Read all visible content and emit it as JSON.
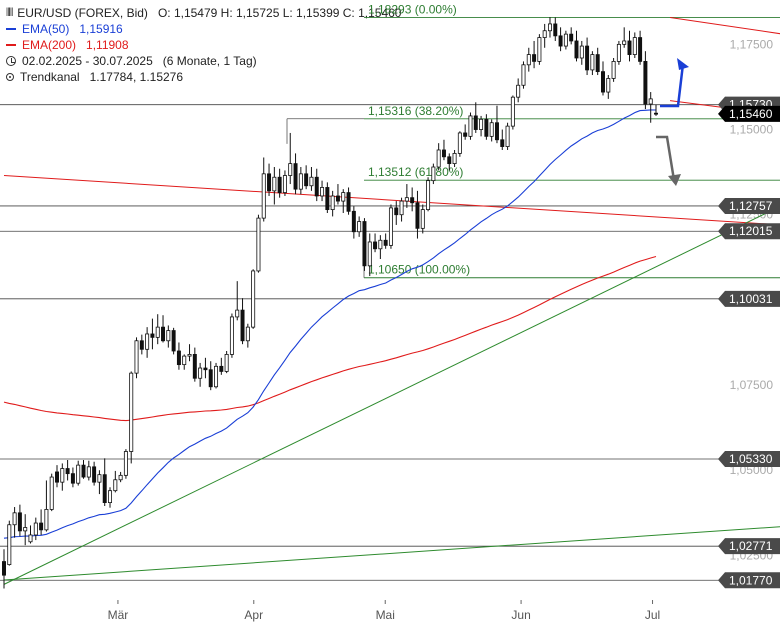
{
  "legend": {
    "instrument": "EUR/USD (FOREX, Bid)",
    "ohlc": "O: 1,15479  H: 1,15725  L: 1,15399  C: 1,15460",
    "ema50_label": "EMA(50)",
    "ema50_value": "1,15916",
    "ema200_label": "EMA(200)",
    "ema200_value": "1,11908",
    "period": "02.02.2025 - 30.07.2025",
    "period_detail": "(6 Monate, 1 Tag)",
    "channel_label": "Trendkanal",
    "channel_value": "1.17784, 1.15276"
  },
  "colors": {
    "up": "#ffffff",
    "down": "#111111",
    "ema50": "#1a3fd6",
    "ema200": "#e01b1b",
    "fib": "#2e7d32",
    "trend": "#2e8b2e",
    "channel": "#e01b1b",
    "label_bg": "#4a4a4a",
    "price_bg": "#000000",
    "arrow_up": "#1a3fd6",
    "arrow_down": "#666666"
  },
  "chart_data": {
    "type": "candlestick",
    "ylim": [
      1.0125,
      1.1845
    ],
    "x_ticks": [
      {
        "label": "Mär",
        "day": 26
      },
      {
        "label": "Apr",
        "day": 57
      },
      {
        "label": "Mai",
        "day": 87
      },
      {
        "label": "Jun",
        "day": 118
      },
      {
        "label": "Jul",
        "day": 148
      }
    ],
    "y_ticks": [
      "1,17500",
      "1,15000",
      "1,12500",
      "1,10000",
      "1,07500",
      "1,05000",
      "1,02500"
    ],
    "y_tick_values": [
      1.175,
      1.15,
      1.125,
      1.1,
      1.075,
      1.05,
      1.025
    ],
    "horizontal_levels": [
      {
        "value": 1.1573,
        "label": "1,15730"
      },
      {
        "value": 1.12757,
        "label": "1,12757"
      },
      {
        "value": 1.12015,
        "label": "1,12015"
      },
      {
        "value": 1.10031,
        "label": "1,10031"
      },
      {
        "value": 1.0533,
        "label": "1,05330"
      },
      {
        "value": 1.02771,
        "label": "1,02771"
      },
      {
        "value": 1.0177,
        "label": "1,01770"
      }
    ],
    "current_price": {
      "value": 1.1546,
      "label": "1,15460"
    },
    "fibonacci": [
      {
        "value": 1.1829,
        "label": "1,18293 (0.00%)"
      },
      {
        "value": 1.15316,
        "label": "1,15316 (38.20%)"
      },
      {
        "value": 1.13512,
        "label": "1,13512 (61.80%)"
      },
      {
        "value": 1.1065,
        "label": "1,10650 (100.00%)"
      }
    ],
    "trend_channel": {
      "upper_start": [
        152,
        1.1829
      ],
      "upper_end": [
        212,
        1.1715
      ],
      "lower_start": [
        152,
        1.1585
      ],
      "lower_end": [
        212,
        1.1485
      ]
    },
    "long_lines": [
      {
        "name": "red-resistance",
        "start": [
          0,
          1.1365
        ],
        "end": [
          212,
          1.1192
        ]
      },
      {
        "name": "green-support",
        "start": [
          0,
          1.0165
        ],
        "end": [
          212,
          1.1493
        ]
      },
      {
        "name": "green-lower",
        "start": [
          0,
          1.0178
        ],
        "end": [
          212,
          1.0365
        ]
      }
    ],
    "days_span": [
      0,
      212
    ],
    "ohlc": [
      [
        1.0232,
        1.0268,
        1.0153,
        1.0192
      ],
      [
        1.0223,
        1.0352,
        1.022,
        1.034
      ],
      [
        1.034,
        1.0392,
        1.0302,
        1.0375
      ],
      [
        1.0375,
        1.0399,
        1.0306,
        1.0322
      ],
      [
        1.0322,
        1.0371,
        1.028,
        1.0332
      ],
      [
        1.029,
        1.0338,
        1.0285,
        1.031
      ],
      [
        1.031,
        1.0361,
        1.0295,
        1.0345
      ],
      [
        1.0345,
        1.0385,
        1.031,
        1.0325
      ],
      [
        1.0325,
        1.047,
        1.032,
        1.0385
      ],
      [
        1.0385,
        1.049,
        1.038,
        1.048
      ],
      [
        1.0495,
        1.0515,
        1.045,
        1.0465
      ],
      [
        1.0465,
        1.052,
        1.044,
        1.0505
      ],
      [
        1.0505,
        1.053,
        1.047,
        1.049
      ],
      [
        1.049,
        1.0508,
        1.045,
        1.0462
      ],
      [
        1.0462,
        1.0528,
        1.0455,
        1.0515
      ],
      [
        1.0515,
        1.053,
        1.0475,
        1.048
      ],
      [
        1.048,
        1.0528,
        1.047,
        1.051
      ],
      [
        1.051,
        1.0525,
        1.0455,
        1.0465
      ],
      [
        1.0465,
        1.05,
        1.043,
        1.0487
      ],
      [
        1.0487,
        1.0535,
        1.0395,
        1.0405
      ],
      [
        1.0405,
        1.045,
        1.039,
        1.044
      ],
      [
        1.044,
        1.0498,
        1.0435,
        1.0472
      ],
      [
        1.0472,
        1.0495,
        1.0465,
        1.0485
      ],
      [
        1.0485,
        1.0562,
        1.0475,
        1.0555
      ],
      [
        1.0555,
        1.079,
        1.052,
        1.0785
      ],
      [
        1.0785,
        1.089,
        1.077,
        1.088
      ],
      [
        1.088,
        1.0898,
        1.084,
        1.0855
      ],
      [
        1.0855,
        1.092,
        1.083,
        1.09
      ],
      [
        1.09,
        1.0945,
        1.0855,
        1.089
      ],
      [
        1.089,
        1.0958,
        1.087,
        1.092
      ],
      [
        1.092,
        1.0955,
        1.0875,
        1.088
      ],
      [
        1.088,
        1.0925,
        1.086,
        1.091
      ],
      [
        1.091,
        1.0918,
        1.084,
        1.085
      ],
      [
        1.085,
        1.0875,
        1.0795,
        1.081
      ],
      [
        1.081,
        1.084,
        1.0795,
        1.0835
      ],
      [
        1.0835,
        1.087,
        1.082,
        1.084
      ],
      [
        1.084,
        1.086,
        1.076,
        1.077
      ],
      [
        1.077,
        1.0815,
        1.0745,
        1.08
      ],
      [
        1.08,
        1.083,
        1.077,
        1.0795
      ],
      [
        1.0795,
        1.082,
        1.0735,
        1.0745
      ],
      [
        1.0745,
        1.0815,
        1.074,
        1.0805
      ],
      [
        1.0805,
        1.083,
        1.078,
        1.079
      ],
      [
        1.079,
        1.085,
        1.0785,
        1.084
      ],
      [
        1.084,
        1.096,
        1.083,
        1.095
      ],
      [
        1.095,
        1.1055,
        1.094,
        1.097
      ],
      [
        1.097,
        1.1005,
        1.087,
        1.088
      ],
      [
        1.088,
        1.093,
        1.086,
        1.092
      ],
      [
        1.092,
        1.109,
        1.0915,
        1.1085
      ],
      [
        1.1085,
        1.125,
        1.108,
        1.124
      ],
      [
        1.124,
        1.1418,
        1.123,
        1.137
      ],
      [
        1.137,
        1.14,
        1.1305,
        1.132
      ],
      [
        1.132,
        1.139,
        1.128,
        1.136
      ],
      [
        1.136,
        1.1385,
        1.13,
        1.1315
      ],
      [
        1.1315,
        1.138,
        1.1305,
        1.1365
      ],
      [
        1.1365,
        1.149,
        1.134,
        1.14
      ],
      [
        1.14,
        1.143,
        1.131,
        1.1325
      ],
      [
        1.1325,
        1.139,
        1.131,
        1.137
      ],
      [
        1.137,
        1.1395,
        1.1325,
        1.1335
      ],
      [
        1.1335,
        1.139,
        1.132,
        1.136
      ],
      [
        1.136,
        1.1385,
        1.129,
        1.1305
      ],
      [
        1.1305,
        1.135,
        1.129,
        1.133
      ],
      [
        1.133,
        1.1345,
        1.1255,
        1.1265
      ],
      [
        1.1265,
        1.132,
        1.1245,
        1.1305
      ],
      [
        1.1305,
        1.134,
        1.128,
        1.129
      ],
      [
        1.129,
        1.1325,
        1.1255,
        1.1315
      ],
      [
        1.1315,
        1.133,
        1.125,
        1.126
      ],
      [
        1.126,
        1.1275,
        1.118,
        1.12
      ],
      [
        1.12,
        1.1245,
        1.1185,
        1.123
      ],
      [
        1.123,
        1.124,
        1.1085,
        1.11
      ],
      [
        1.11,
        1.1195,
        1.107,
        1.117
      ],
      [
        1.117,
        1.1195,
        1.114,
        1.115
      ],
      [
        1.115,
        1.119,
        1.112,
        1.1175
      ],
      [
        1.1175,
        1.1195,
        1.115,
        1.116
      ],
      [
        1.116,
        1.128,
        1.115,
        1.127
      ],
      [
        1.127,
        1.129,
        1.122,
        1.125
      ],
      [
        1.125,
        1.13,
        1.123,
        1.129
      ],
      [
        1.129,
        1.134,
        1.127,
        1.13
      ],
      [
        1.13,
        1.133,
        1.126,
        1.1285
      ],
      [
        1.1285,
        1.132,
        1.118,
        1.121
      ],
      [
        1.121,
        1.128,
        1.1195,
        1.1265
      ],
      [
        1.1265,
        1.136,
        1.126,
        1.135
      ],
      [
        1.135,
        1.14,
        1.134,
        1.139
      ],
      [
        1.139,
        1.146,
        1.138,
        1.144
      ],
      [
        1.144,
        1.147,
        1.141,
        1.142
      ],
      [
        1.142,
        1.143,
        1.138,
        1.14
      ],
      [
        1.14,
        1.144,
        1.139,
        1.143
      ],
      [
        1.143,
        1.1495,
        1.142,
        1.149
      ],
      [
        1.149,
        1.1515,
        1.147,
        1.148
      ],
      [
        1.148,
        1.155,
        1.147,
        1.154
      ],
      [
        1.154,
        1.158,
        1.149,
        1.15
      ],
      [
        1.15,
        1.154,
        1.148,
        1.153
      ],
      [
        1.153,
        1.1545,
        1.147,
        1.148
      ],
      [
        1.148,
        1.153,
        1.1465,
        1.152
      ],
      [
        1.152,
        1.157,
        1.146,
        1.147
      ],
      [
        1.147,
        1.15,
        1.144,
        1.145
      ],
      [
        1.145,
        1.152,
        1.144,
        1.151
      ],
      [
        1.151,
        1.16,
        1.15,
        1.1595
      ],
      [
        1.1595,
        1.165,
        1.158,
        1.163
      ],
      [
        1.163,
        1.17,
        1.162,
        1.169
      ],
      [
        1.169,
        1.174,
        1.167,
        1.172
      ],
      [
        1.172,
        1.176,
        1.168,
        1.17
      ],
      [
        1.17,
        1.178,
        1.169,
        1.177
      ],
      [
        1.177,
        1.181,
        1.174,
        1.179
      ],
      [
        1.179,
        1.183,
        1.177,
        1.181
      ],
      [
        1.181,
        1.1829,
        1.176,
        1.1775
      ],
      [
        1.1775,
        1.18,
        1.173,
        1.1745
      ],
      [
        1.1745,
        1.179,
        1.1735,
        1.178
      ],
      [
        1.178,
        1.18,
        1.175,
        1.176
      ],
      [
        1.176,
        1.179,
        1.17,
        1.171
      ],
      [
        1.171,
        1.176,
        1.169,
        1.1745
      ],
      [
        1.1745,
        1.177,
        1.166,
        1.1675
      ],
      [
        1.1675,
        1.173,
        1.166,
        1.172
      ],
      [
        1.172,
        1.174,
        1.166,
        1.167
      ],
      [
        1.167,
        1.17,
        1.16,
        1.161
      ],
      [
        1.161,
        1.166,
        1.159,
        1.165
      ],
      [
        1.165,
        1.171,
        1.164,
        1.17
      ],
      [
        1.17,
        1.176,
        1.169,
        1.175
      ],
      [
        1.175,
        1.18,
        1.174,
        1.176
      ],
      [
        1.176,
        1.179,
        1.17,
        1.172
      ],
      [
        1.172,
        1.1785,
        1.171,
        1.177
      ],
      [
        1.177,
        1.179,
        1.169,
        1.17
      ],
      [
        1.17,
        1.173,
        1.156,
        1.1575
      ],
      [
        1.1575,
        1.161,
        1.152,
        1.159
      ],
      [
        1.1548,
        1.1573,
        1.154,
        1.1546
      ]
    ]
  }
}
